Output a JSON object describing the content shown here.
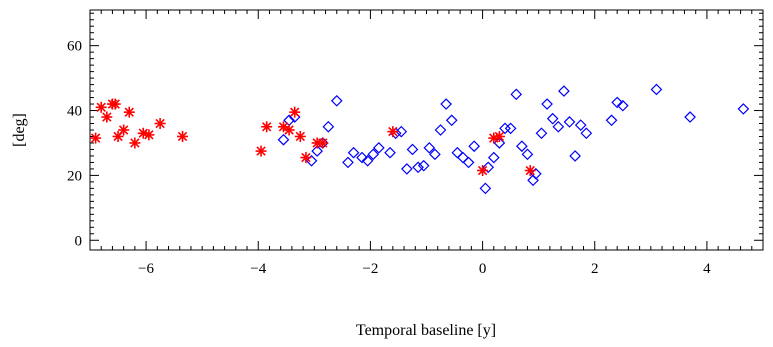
{
  "chart_data": {
    "type": "scatter",
    "title": "",
    "xlabel": "Temporal baseline [y]",
    "ylabel": "[deg]",
    "xlim": [
      -7.0,
      5.0
    ],
    "ylim": [
      -3,
      71
    ],
    "xticks": [
      -6,
      -4,
      -2,
      0,
      2,
      4
    ],
    "xtick_labels": [
      "−6",
      "−4",
      "−2",
      "0",
      "2",
      "4"
    ],
    "yticks": [
      0,
      20,
      40,
      60
    ],
    "ytick_labels": [
      "0",
      "20",
      "40",
      "60"
    ],
    "grid": false,
    "legend": "none",
    "series": [
      {
        "marker": "diamond",
        "color": "#0000ff",
        "points": [
          [
            -3.55,
            31
          ],
          [
            -3.45,
            37
          ],
          [
            -3.35,
            38
          ],
          [
            -3.05,
            24.5
          ],
          [
            -2.95,
            27.5
          ],
          [
            -2.85,
            30
          ],
          [
            -2.75,
            35
          ],
          [
            -2.6,
            43
          ],
          [
            -2.4,
            24
          ],
          [
            -2.3,
            27
          ],
          [
            -2.15,
            25.5
          ],
          [
            -2.05,
            24.5
          ],
          [
            -1.95,
            26.5
          ],
          [
            -1.85,
            28.5
          ],
          [
            -1.65,
            27
          ],
          [
            -1.55,
            33
          ],
          [
            -1.45,
            33.5
          ],
          [
            -1.35,
            22
          ],
          [
            -1.25,
            28
          ],
          [
            -1.15,
            22.5
          ],
          [
            -1.05,
            23
          ],
          [
            -0.95,
            28.5
          ],
          [
            -0.85,
            26.5
          ],
          [
            -0.75,
            34
          ],
          [
            -0.65,
            42
          ],
          [
            -0.55,
            37
          ],
          [
            -0.45,
            27
          ],
          [
            -0.35,
            25.5
          ],
          [
            -0.25,
            24
          ],
          [
            -0.15,
            29
          ],
          [
            0.05,
            16
          ],
          [
            0.1,
            22.5
          ],
          [
            0.2,
            25.5
          ],
          [
            0.3,
            30
          ],
          [
            0.4,
            34.5
          ],
          [
            0.5,
            34.5
          ],
          [
            0.6,
            45
          ],
          [
            0.7,
            29
          ],
          [
            0.8,
            26.5
          ],
          [
            0.9,
            18.5
          ],
          [
            0.95,
            20.5
          ],
          [
            1.05,
            33
          ],
          [
            1.15,
            42
          ],
          [
            1.25,
            37.5
          ],
          [
            1.35,
            35
          ],
          [
            1.45,
            46
          ],
          [
            1.55,
            36.5
          ],
          [
            1.65,
            26
          ],
          [
            1.75,
            35.5
          ],
          [
            1.85,
            33
          ],
          [
            2.3,
            37
          ],
          [
            2.4,
            42.5
          ],
          [
            2.5,
            41.5
          ],
          [
            3.1,
            46.5
          ],
          [
            3.7,
            38
          ],
          [
            4.65,
            40.5
          ]
        ]
      },
      {
        "marker": "asterisk",
        "color": "#ff0000",
        "points": [
          [
            -6.9,
            31.5
          ],
          [
            -6.8,
            41
          ],
          [
            -6.7,
            38
          ],
          [
            -6.6,
            42
          ],
          [
            -6.55,
            42
          ],
          [
            -6.5,
            32
          ],
          [
            -6.4,
            34
          ],
          [
            -6.3,
            39.5
          ],
          [
            -6.2,
            30
          ],
          [
            -6.05,
            33
          ],
          [
            -5.95,
            32.5
          ],
          [
            -5.75,
            36
          ],
          [
            -5.35,
            32
          ],
          [
            -3.95,
            27.5
          ],
          [
            -3.85,
            35
          ],
          [
            -3.55,
            35
          ],
          [
            -3.45,
            34
          ],
          [
            -3.35,
            39.5
          ],
          [
            -3.25,
            32
          ],
          [
            -3.15,
            25.5
          ],
          [
            -2.95,
            30
          ],
          [
            -2.85,
            30
          ],
          [
            -1.6,
            33.5
          ],
          [
            0.0,
            21.5
          ],
          [
            0.2,
            31.5
          ],
          [
            0.3,
            32
          ],
          [
            0.85,
            21.5
          ]
        ]
      }
    ]
  }
}
